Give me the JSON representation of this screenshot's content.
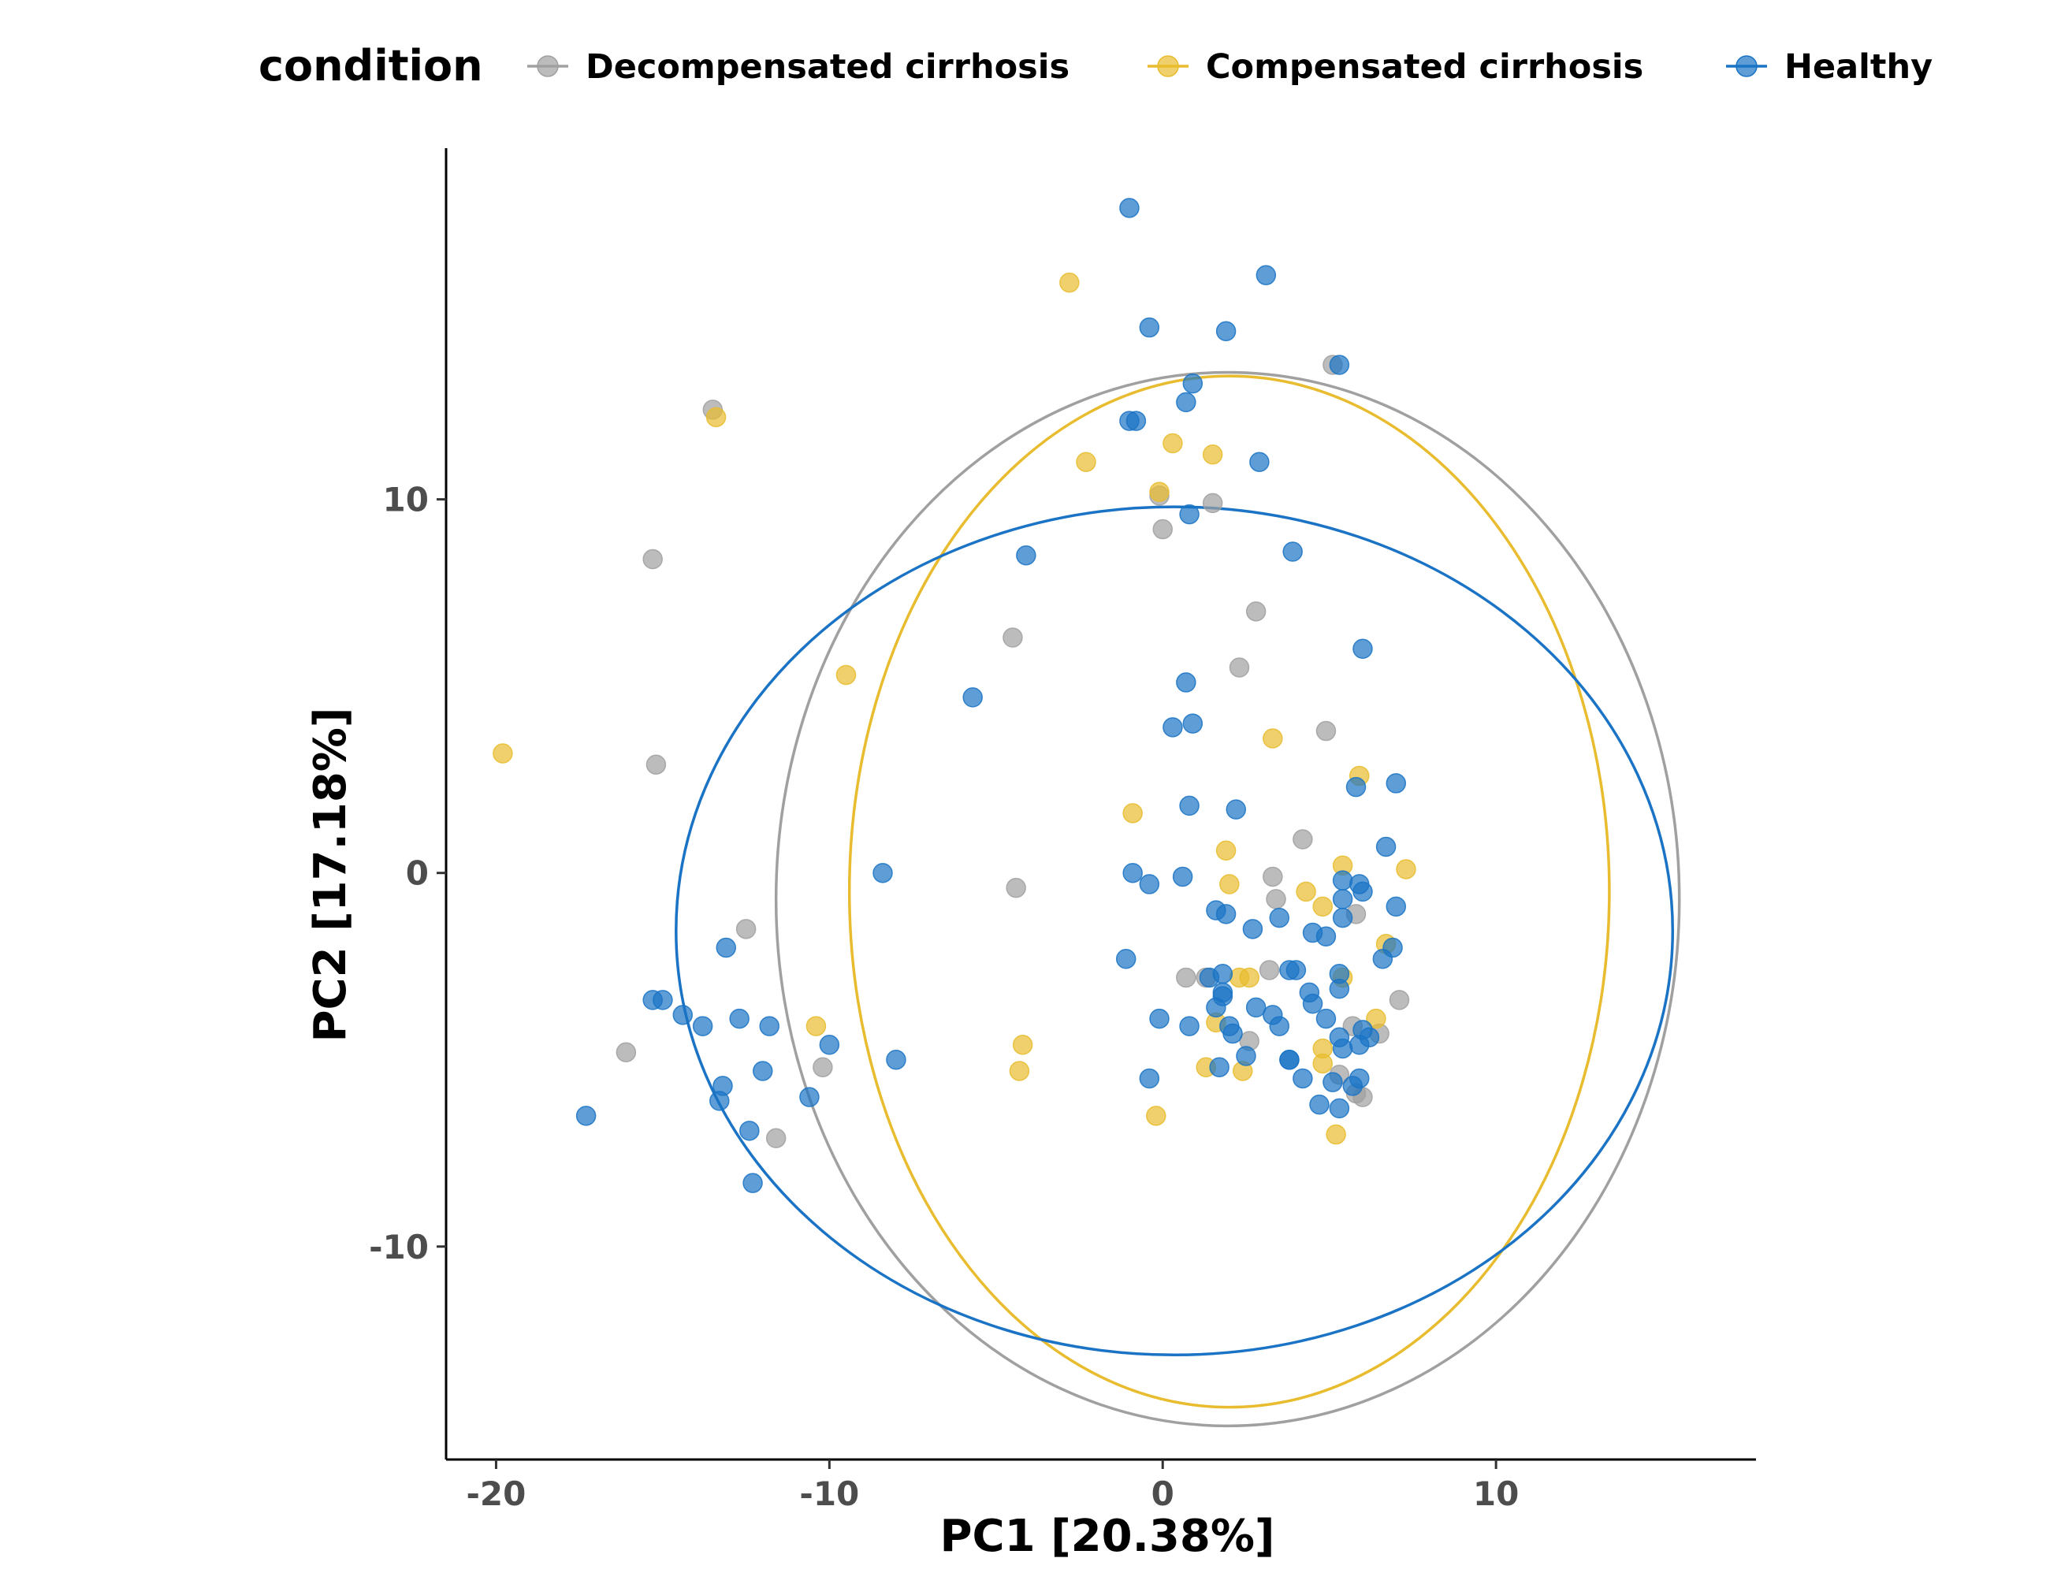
{
  "chart_data": {
    "type": "scatter",
    "xlabel": "PC1 [20.38%]",
    "ylabel": "PC2 [17.18%]",
    "xlim": [
      -21.5,
      17.8
    ],
    "ylim": [
      -15.7,
      19.4
    ],
    "x_ticks": [
      -20,
      -10,
      0,
      10
    ],
    "x_tick_labels": [
      "-20",
      "-10",
      "0",
      "10"
    ],
    "y_ticks": [
      -10,
      0,
      10
    ],
    "y_tick_labels": [
      "-10",
      "0",
      "10"
    ],
    "grid": false,
    "legend": {
      "title": "condition",
      "position": "top"
    },
    "series": [
      {
        "name": "Decompensated cirrhosis",
        "color": "#a0a0a0",
        "ellipse": {
          "cx": 1.95,
          "cy": -0.7,
          "rx": 13.55,
          "ry": 14.1
        },
        "points": [
          [
            -13.5,
            12.4
          ],
          [
            -15.3,
            8.4
          ],
          [
            -15.2,
            2.9
          ],
          [
            -16.1,
            -4.8
          ],
          [
            -12.5,
            -1.5
          ],
          [
            -11.6,
            -7.1
          ],
          [
            -10.2,
            -5.2
          ],
          [
            -4.5,
            6.3
          ],
          [
            -4.4,
            -0.4
          ],
          [
            0,
            9.2
          ],
          [
            1.5,
            9.9
          ],
          [
            -0.1,
            10.1
          ],
          [
            2.3,
            5.5
          ],
          [
            2.8,
            7.0
          ],
          [
            4.9,
            3.8
          ],
          [
            5.1,
            13.6
          ],
          [
            4.2,
            0.9
          ],
          [
            3.3,
            -0.1
          ],
          [
            3.4,
            -0.7
          ],
          [
            5.8,
            -1.1
          ],
          [
            0.7,
            -2.8
          ],
          [
            1.3,
            -2.8
          ],
          [
            3.2,
            -2.6
          ],
          [
            2.6,
            -4.5
          ],
          [
            5.7,
            -4.1
          ],
          [
            6.5,
            -4.3
          ],
          [
            7.1,
            -3.4
          ],
          [
            5.3,
            -5.4
          ],
          [
            5.8,
            -5.9
          ],
          [
            6.0,
            -6.0
          ]
        ]
      },
      {
        "name": "Compensated cirrhosis",
        "color": "#e8bc2e",
        "ellipse": {
          "cx": 2.0,
          "cy": -0.5,
          "rx": 11.4,
          "ry": 13.8
        },
        "points": [
          [
            -19.8,
            3.2
          ],
          [
            -13.4,
            12.2
          ],
          [
            -9.5,
            5.3
          ],
          [
            -10.4,
            -4.1
          ],
          [
            -4.2,
            -4.6
          ],
          [
            -4.3,
            -5.3
          ],
          [
            -2.8,
            15.8
          ],
          [
            -2.3,
            11.0
          ],
          [
            -0.1,
            10.2
          ],
          [
            0.3,
            11.5
          ],
          [
            1.5,
            11.2
          ],
          [
            -0.9,
            1.6
          ],
          [
            1.9,
            0.6
          ],
          [
            2.0,
            -0.3
          ],
          [
            3.3,
            3.6
          ],
          [
            5.9,
            2.6
          ],
          [
            5.4,
            0.2
          ],
          [
            7.3,
            0.1
          ],
          [
            4.3,
            -0.5
          ],
          [
            4.8,
            -0.9
          ],
          [
            6.7,
            -1.9
          ],
          [
            2.3,
            -2.8
          ],
          [
            2.6,
            -2.8
          ],
          [
            5.4,
            -2.8
          ],
          [
            1.6,
            -4.0
          ],
          [
            6.4,
            -3.9
          ],
          [
            1.3,
            -5.2
          ],
          [
            2.4,
            -5.3
          ],
          [
            4.8,
            -4.7
          ],
          [
            4.8,
            -5.1
          ],
          [
            -0.2,
            -6.5
          ],
          [
            5.2,
            -7.0
          ]
        ]
      },
      {
        "name": "Healthy",
        "color": "#1a73c4",
        "ellipse": {
          "cx": 0.35,
          "cy": -1.55,
          "rx": 14.95,
          "ry": 11.35
        },
        "points": [
          [
            -1.0,
            17.8
          ],
          [
            3.1,
            16.0
          ],
          [
            -0.4,
            14.6
          ],
          [
            1.9,
            14.5
          ],
          [
            5.3,
            13.6
          ],
          [
            0.9,
            13.1
          ],
          [
            0.7,
            12.6
          ],
          [
            -1.0,
            12.1
          ],
          [
            -0.8,
            12.1
          ],
          [
            2.9,
            11.0
          ],
          [
            0.8,
            9.6
          ],
          [
            -4.1,
            8.5
          ],
          [
            3.9,
            8.6
          ],
          [
            6.0,
            6.0
          ],
          [
            -5.7,
            4.7
          ],
          [
            0.7,
            5.1
          ],
          [
            0.3,
            3.9
          ],
          [
            0.9,
            4.0
          ],
          [
            5.8,
            2.3
          ],
          [
            7.0,
            2.4
          ],
          [
            0.8,
            1.8
          ],
          [
            2.2,
            1.7
          ],
          [
            6.7,
            0.7
          ],
          [
            -8.4,
            0.0
          ],
          [
            -0.9,
            0.0
          ],
          [
            -0.4,
            -0.3
          ],
          [
            0.6,
            -0.1
          ],
          [
            5.4,
            -0.2
          ],
          [
            5.9,
            -0.3
          ],
          [
            5.4,
            -0.7
          ],
          [
            6.0,
            -0.5
          ],
          [
            7.0,
            -0.9
          ],
          [
            1.6,
            -1.0
          ],
          [
            1.9,
            -1.1
          ],
          [
            5.4,
            -1.2
          ],
          [
            2.7,
            -1.5
          ],
          [
            3.5,
            -1.2
          ],
          [
            4.5,
            -1.6
          ],
          [
            4.9,
            -1.7
          ],
          [
            -13.1,
            -2.0
          ],
          [
            -1.1,
            -2.3
          ],
          [
            6.6,
            -2.3
          ],
          [
            6.9,
            -2.0
          ],
          [
            1.4,
            -2.8
          ],
          [
            1.8,
            -2.7
          ],
          [
            5.3,
            -2.7
          ],
          [
            3.8,
            -2.6
          ],
          [
            4.0,
            -2.6
          ],
          [
            1.8,
            -3.2
          ],
          [
            1.6,
            -3.6
          ],
          [
            2.8,
            -3.6
          ],
          [
            4.4,
            -3.2
          ],
          [
            5.3,
            -3.1
          ],
          [
            -15.3,
            -3.4
          ],
          [
            -15.0,
            -3.4
          ],
          [
            -14.4,
            -3.8
          ],
          [
            -13.8,
            -4.1
          ],
          [
            -12.7,
            -3.9
          ],
          [
            -11.8,
            -4.1
          ],
          [
            1.8,
            -3.3
          ],
          [
            3.3,
            -3.8
          ],
          [
            3.5,
            -4.1
          ],
          [
            4.5,
            -3.5
          ],
          [
            4.9,
            -3.9
          ],
          [
            -0.1,
            -3.9
          ],
          [
            0.8,
            -4.1
          ],
          [
            2.0,
            -4.1
          ],
          [
            2.1,
            -4.3
          ],
          [
            5.3,
            -4.4
          ],
          [
            6.0,
            -4.2
          ],
          [
            6.2,
            -4.4
          ],
          [
            5.9,
            -4.6
          ],
          [
            5.4,
            -4.7
          ],
          [
            -10.0,
            -4.6
          ],
          [
            -8.0,
            -5.0
          ],
          [
            2.5,
            -4.9
          ],
          [
            3.8,
            -5.0
          ],
          [
            3.8,
            -5.0
          ],
          [
            1.7,
            -5.2
          ],
          [
            -12.0,
            -5.3
          ],
          [
            -13.2,
            -5.7
          ],
          [
            -13.3,
            -6.1
          ],
          [
            -10.6,
            -6.0
          ],
          [
            -0.4,
            -5.5
          ],
          [
            4.2,
            -5.5
          ],
          [
            5.1,
            -5.6
          ],
          [
            5.7,
            -5.7
          ],
          [
            5.9,
            -5.5
          ],
          [
            4.7,
            -6.2
          ],
          [
            5.3,
            -6.3
          ],
          [
            -17.3,
            -6.5
          ],
          [
            -12.4,
            -6.9
          ],
          [
            -12.3,
            -8.3
          ]
        ]
      }
    ]
  }
}
